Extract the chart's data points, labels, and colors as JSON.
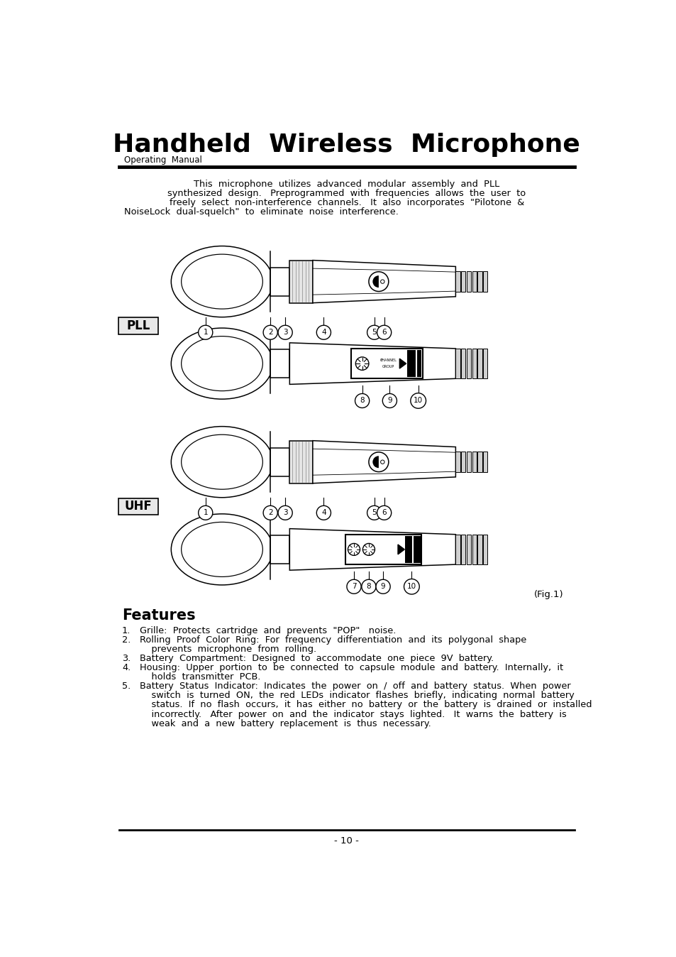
{
  "title": "Handheld  Wireless  Microphone",
  "subtitle": "Operating  Manual",
  "features_title": "Features",
  "page_number": "- 10 -",
  "fig_label": "(Fig.1)",
  "pll_label": "PLL",
  "uhf_label": "UHF",
  "bg_color": "#ffffff",
  "text_color": "#000000",
  "intro_line1": "This  microphone  utilizes  advanced  modular  assembly  and  PLL",
  "intro_line2": "synthesized  design.   Preprogrammed  with  frequencies  allows  the  user  to",
  "intro_line3": "freely  select  non-interference  channels.   It  also  incorporates  \"Pilotone  &",
  "intro_line4": "NoiseLock  dual-squelch\"  to  eliminate  noise  interference.",
  "feat1": "Grille:  Protects  cartridge  and  prevents  \"POP\"   noise.",
  "feat2a": "Rolling  Proof  Color  Ring:  For  frequency  differentiation  and  its  polygonal  shape",
  "feat2b": "    prevents  microphone  from  rolling.",
  "feat3": "Battery  Compartment:  Designed  to  accommodate  one  piece  9V  battery.",
  "feat4a": "Housing:  Upper  portion  to  be  connected  to  capsule  module  and  battery.  Internally,  it",
  "feat4b": "    holds  transmitter  PCB.",
  "feat5a": "Battery  Status  Indicator:  Indicates  the  power  on  /  off  and  battery  status.  When  power",
  "feat5b": "    switch  is  turned  ON,  the  red  LEDs  indicator  flashes  briefly,  indicating  normal  battery",
  "feat5c": "    status.  If  no  flash  occurs,  it  has  either  no  battery  or  the  battery  is  drained  or  installed",
  "feat5d": "    incorrectly.   After  power  on  and  the  indicator  stays  lighted.   It  warns  the  battery  is",
  "feat5e": "    weak  and  a  new  battery  replacement  is  thus  necessary."
}
